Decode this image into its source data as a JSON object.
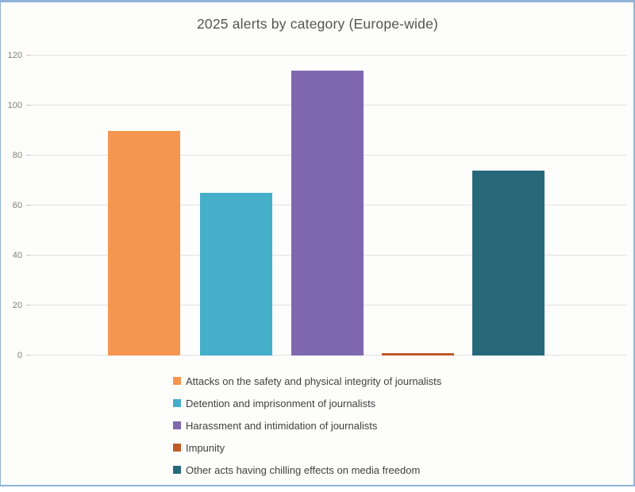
{
  "page": {
    "frame_border_color": "#8FB3D9",
    "background_color": "#FDFDFC"
  },
  "chart_data": {
    "type": "bar",
    "title": "2025 alerts by category (Europe-wide)",
    "categories": [
      "Attacks on the safety and physical integrity of journalists",
      "Detention and imprisonment of journalists",
      "Harassment and intimidation of journalists",
      "Impunity",
      "Other acts having chilling effects on media freedom"
    ],
    "values": [
      90,
      65,
      114,
      1,
      74
    ],
    "colors": [
      "#F4964F",
      "#45AEC9",
      "#7F68AE",
      "#C05A28",
      "#27697B"
    ],
    "ylim": [
      0,
      120
    ],
    "yticks": [
      0,
      20,
      40,
      60,
      80,
      100,
      120
    ],
    "grid": true,
    "legend_position": "bottom-left",
    "xlabel": "",
    "ylabel": "",
    "title_color": "#575352",
    "tick_label_color": "#837D78",
    "gridline_color": "#E4E1DE",
    "legend_text_color": "#3F3F3F"
  }
}
